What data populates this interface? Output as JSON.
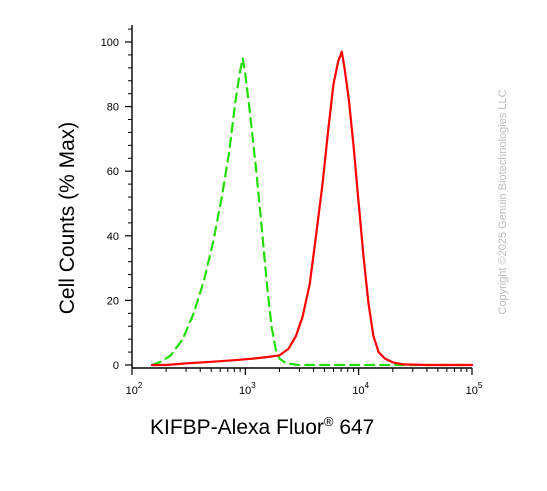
{
  "chart_data": {
    "type": "line",
    "ylabel": "Cell Counts (% Max)",
    "xlabel_main": "KIFBP-Alexa Fluor",
    "xlabel_reg": "®",
    "xlabel_tail": " 647",
    "x_scale": "log",
    "xlim": [
      100,
      100000
    ],
    "ylim": [
      0,
      100
    ],
    "y_ticks": [
      "0",
      "20",
      "40",
      "60",
      "80",
      "100"
    ],
    "x_ticks": [
      {
        "value": 100,
        "base": "10",
        "exp": "2"
      },
      {
        "value": 1000,
        "base": "10",
        "exp": "3"
      },
      {
        "value": 10000,
        "base": "10",
        "exp": "4"
      },
      {
        "value": 100000,
        "base": "10",
        "exp": "5"
      }
    ],
    "series": [
      {
        "color": "#22dd00",
        "style": "dashed",
        "points": [
          [
            150,
            0
          ],
          [
            180,
            1
          ],
          [
            220,
            3
          ],
          [
            280,
            8
          ],
          [
            350,
            16
          ],
          [
            430,
            26
          ],
          [
            520,
            38
          ],
          [
            620,
            52
          ],
          [
            720,
            66
          ],
          [
            820,
            82
          ],
          [
            900,
            91
          ],
          [
            950,
            95
          ],
          [
            1000,
            90
          ],
          [
            1100,
            78
          ],
          [
            1250,
            60
          ],
          [
            1400,
            42
          ],
          [
            1550,
            25
          ],
          [
            1700,
            12
          ],
          [
            1850,
            5
          ],
          [
            2000,
            2
          ],
          [
            2300,
            0.5
          ],
          [
            3000,
            0
          ],
          [
            20000,
            0
          ],
          [
            100000,
            0
          ]
        ]
      },
      {
        "color": "#ff0000",
        "style": "solid",
        "points": [
          [
            150,
            0
          ],
          [
            200,
            0
          ],
          [
            300,
            0.5
          ],
          [
            500,
            1
          ],
          [
            800,
            1.5
          ],
          [
            1200,
            2
          ],
          [
            1600,
            2.5
          ],
          [
            2000,
            3
          ],
          [
            2400,
            5
          ],
          [
            2800,
            9
          ],
          [
            3200,
            15
          ],
          [
            3700,
            25
          ],
          [
            4200,
            40
          ],
          [
            4800,
            56
          ],
          [
            5400,
            73
          ],
          [
            6000,
            87
          ],
          [
            6600,
            94
          ],
          [
            7100,
            97
          ],
          [
            7500,
            92
          ],
          [
            8200,
            82
          ],
          [
            9000,
            68
          ],
          [
            10000,
            50
          ],
          [
            11000,
            34
          ],
          [
            12200,
            19
          ],
          [
            13500,
            9
          ],
          [
            15000,
            4
          ],
          [
            17000,
            2
          ],
          [
            20000,
            0.8
          ],
          [
            25000,
            0.2
          ],
          [
            40000,
            0
          ],
          [
            100000,
            0
          ]
        ]
      }
    ]
  },
  "watermark": "Copyright ©2025 Genuin Biotechnologies LLC"
}
